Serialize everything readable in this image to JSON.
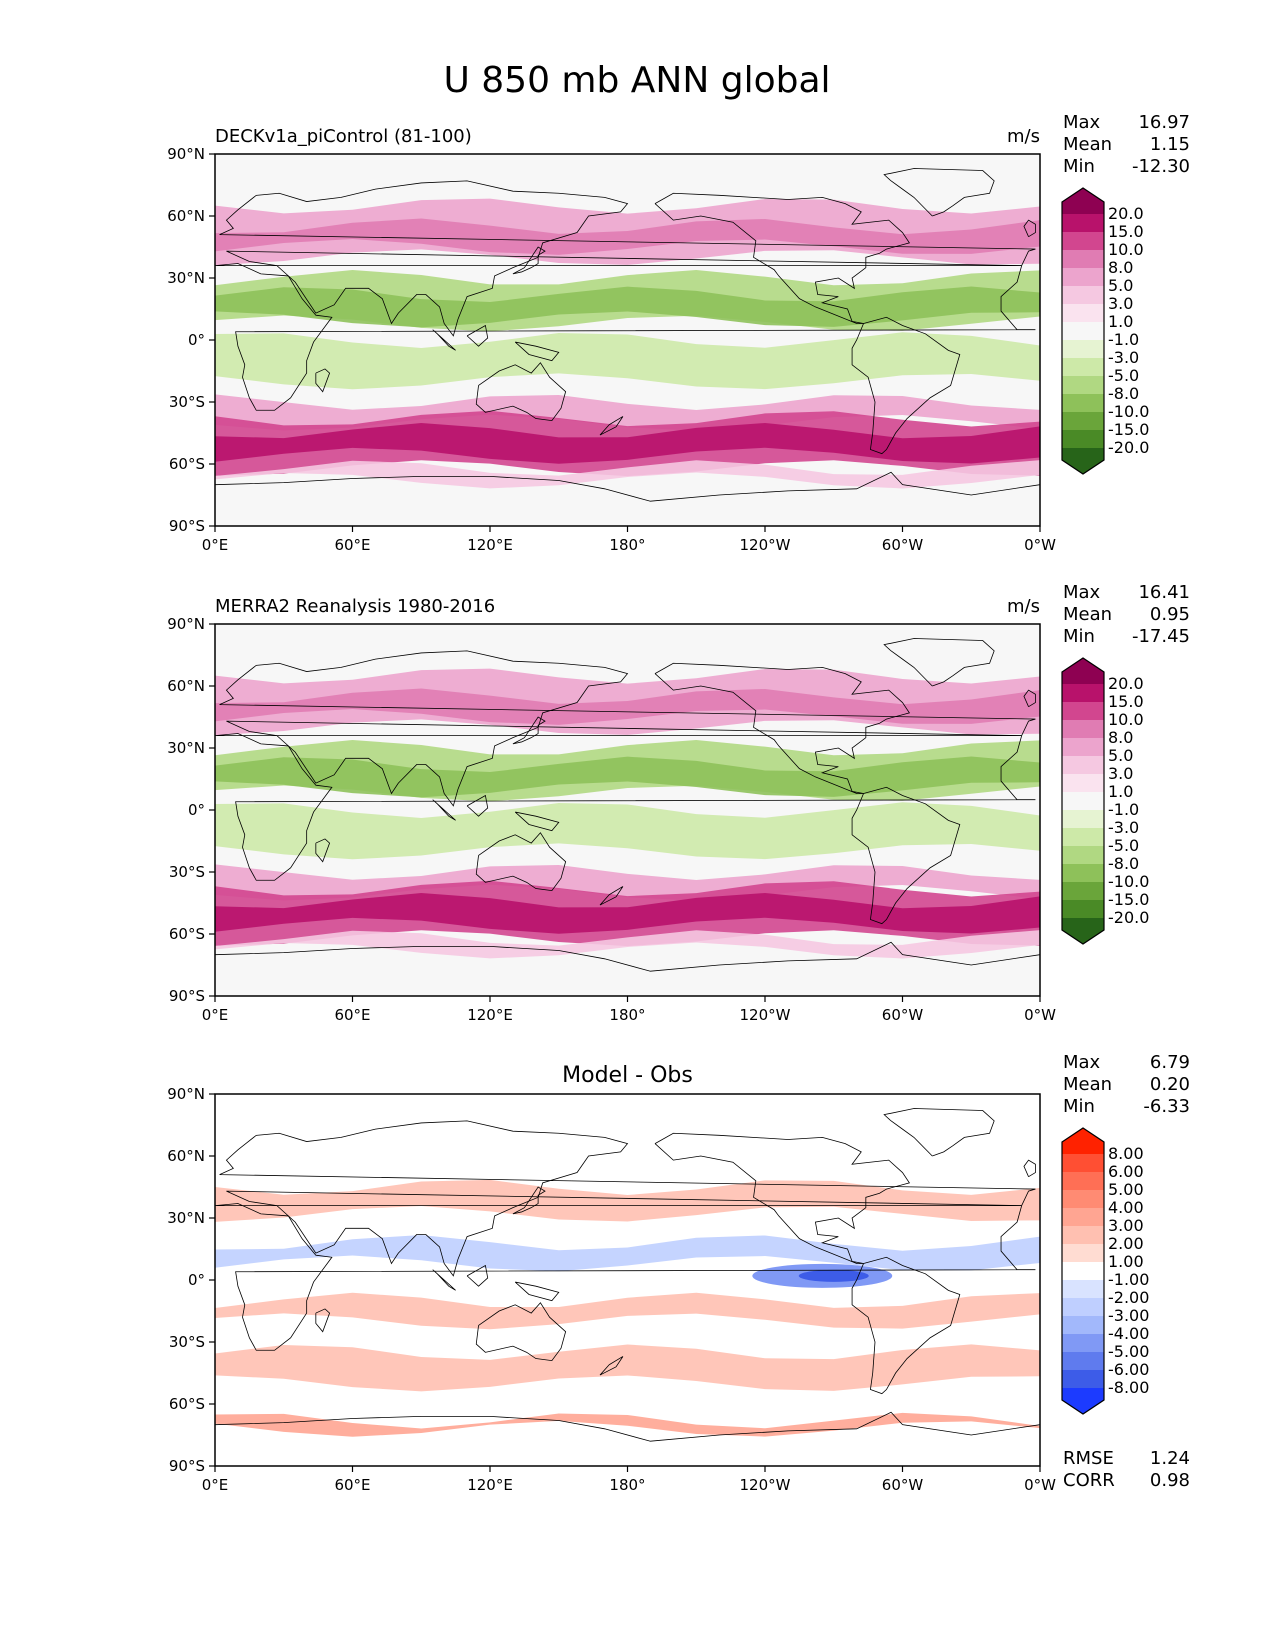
{
  "figure_title": "U 850 mb ANN global",
  "chart_data": [
    {
      "type": "heatmap",
      "title": "DECKv1a_piControl (81-100)",
      "units": "m/s",
      "stats": [
        {
          "label": "Max",
          "value": "16.97"
        },
        {
          "label": "Mean",
          "value": "1.15"
        },
        {
          "label": "Min",
          "value": "-12.30"
        }
      ],
      "x_ticks": [
        "0°E",
        "60°E",
        "120°E",
        "180°",
        "120°W",
        "60°W",
        "0°W"
      ],
      "y_ticks": [
        "90°N",
        "60°N",
        "30°N",
        "0°",
        "30°S",
        "60°S",
        "90°S"
      ],
      "xlim": [
        0,
        360
      ],
      "ylim": [
        -90,
        90
      ],
      "colorbar_levels": [
        "20.0",
        "15.0",
        "10.0",
        "8.0",
        "5.0",
        "3.0",
        "1.0",
        "-1.0",
        "-3.0",
        "-5.0",
        "-8.0",
        "-10.0",
        "-15.0",
        "-20.0"
      ],
      "colorbar_colors": [
        "#8e0152",
        "#b8126b",
        "#d2468f",
        "#e07cb3",
        "#eca4cd",
        "#f5c8e1",
        "#fae3ef",
        "#f7f7f7",
        "#e6f3d2",
        "#cde9a8",
        "#b0d882",
        "#8ec15a",
        "#6aa53a",
        "#4a8a26",
        "#276419"
      ]
    },
    {
      "type": "heatmap",
      "title": "MERRA2 Reanalysis 1980-2016",
      "units": "m/s",
      "stats": [
        {
          "label": "Max",
          "value": "16.41"
        },
        {
          "label": "Mean",
          "value": "0.95"
        },
        {
          "label": "Min",
          "value": "-17.45"
        }
      ],
      "x_ticks": [
        "0°E",
        "60°E",
        "120°E",
        "180°",
        "120°W",
        "60°W",
        "0°W"
      ],
      "y_ticks": [
        "90°N",
        "60°N",
        "30°N",
        "0°",
        "30°S",
        "60°S",
        "90°S"
      ],
      "xlim": [
        0,
        360
      ],
      "ylim": [
        -90,
        90
      ],
      "colorbar_levels": [
        "20.0",
        "15.0",
        "10.0",
        "8.0",
        "5.0",
        "3.0",
        "1.0",
        "-1.0",
        "-3.0",
        "-5.0",
        "-8.0",
        "-10.0",
        "-15.0",
        "-20.0"
      ],
      "colorbar_colors": [
        "#8e0152",
        "#b8126b",
        "#d2468f",
        "#e07cb3",
        "#eca4cd",
        "#f5c8e1",
        "#fae3ef",
        "#f7f7f7",
        "#e6f3d2",
        "#cde9a8",
        "#b0d882",
        "#8ec15a",
        "#6aa53a",
        "#4a8a26",
        "#276419"
      ]
    },
    {
      "type": "heatmap",
      "title": "Model - Obs",
      "units": "",
      "stats": [
        {
          "label": "Max",
          "value": "6.79"
        },
        {
          "label": "Mean",
          "value": "0.20"
        },
        {
          "label": "Min",
          "value": "-6.33"
        }
      ],
      "extra_stats": [
        {
          "label": "RMSE",
          "value": "1.24"
        },
        {
          "label": "CORR",
          "value": "0.98"
        }
      ],
      "x_ticks": [
        "0°E",
        "60°E",
        "120°E",
        "180°",
        "120°W",
        "60°W",
        "0°W"
      ],
      "y_ticks": [
        "90°N",
        "60°N",
        "30°N",
        "0°",
        "30°S",
        "60°S",
        "90°S"
      ],
      "xlim": [
        0,
        360
      ],
      "ylim": [
        -90,
        90
      ],
      "colorbar_levels": [
        "8.00",
        "6.00",
        "5.00",
        "4.00",
        "3.00",
        "2.00",
        "1.00",
        "-1.00",
        "-2.00",
        "-3.00",
        "-4.00",
        "-5.00",
        "-6.00",
        "-8.00"
      ],
      "colorbar_colors": [
        "#ff2200",
        "#ff4f33",
        "#ff6f55",
        "#ff8b73",
        "#ffa592",
        "#ffc0b1",
        "#ffdcd2",
        "#ffffff",
        "#d9e3ff",
        "#bfcfff",
        "#a2b8fb",
        "#8099f5",
        "#5f7bee",
        "#3d5ce8",
        "#1c3bff"
      ]
    }
  ]
}
